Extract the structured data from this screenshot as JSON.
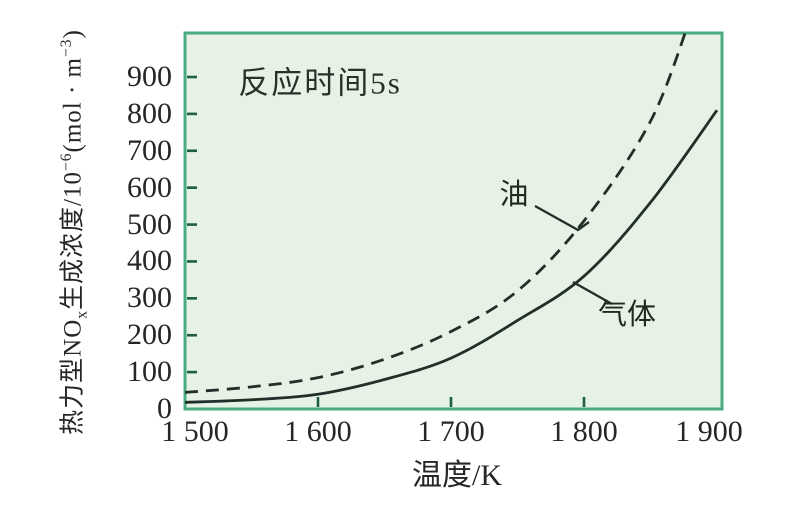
{
  "chart_data": {
    "type": "line",
    "title": "",
    "annotation": "反应时间5s",
    "xlabel": "温度/K",
    "ylabel": "热力型NOx生成浓度/10−6(mol · m−3)",
    "ylabel_parts": {
      "p1": "热力型NO",
      "sub": "x",
      "p2": "生成浓度/10",
      "sup": "−6",
      "p3": "(mol · m",
      "sup2": "−3",
      "p4": ")"
    },
    "xlim": [
      1500,
      1900
    ],
    "ylim": [
      0,
      1020
    ],
    "grid": false,
    "legend": "inline curve labels with leader lines",
    "x_ticks": {
      "values": [
        1500,
        1600,
        1700,
        1800,
        1900
      ],
      "labels": [
        "1 500",
        "1 600",
        "1 700",
        "1 800",
        "1 900"
      ]
    },
    "y_ticks": {
      "values": [
        0,
        100,
        200,
        300,
        400,
        500,
        600,
        700,
        800,
        900
      ],
      "labels": [
        "0",
        "100",
        "200",
        "300",
        "400",
        "500",
        "600",
        "700",
        "800",
        "900"
      ]
    },
    "series": [
      {
        "name": "油",
        "style": "dashed",
        "x": [
          1500,
          1550,
          1600,
          1650,
          1700,
          1750,
          1800,
          1850,
          1880
        ],
        "y": [
          45,
          60,
          85,
          135,
          210,
          320,
          510,
          780,
          1060
        ],
        "note": "dashed curve exits top of plot near 1875 K"
      },
      {
        "name": "气体",
        "style": "solid",
        "x": [
          1500,
          1550,
          1600,
          1650,
          1700,
          1750,
          1800,
          1850,
          1900
        ],
        "y": [
          18,
          25,
          40,
          80,
          138,
          240,
          360,
          560,
          810
        ]
      }
    ]
  },
  "labels": {
    "oil": "油",
    "gas": "气体"
  },
  "colors": {
    "plot_bg": "#e6f2e5",
    "plot_border": "#4aab7e",
    "tick_mark": "#1e5e40",
    "curve": "#222e28",
    "text": "#242824",
    "page_bg": "#ffffff"
  }
}
